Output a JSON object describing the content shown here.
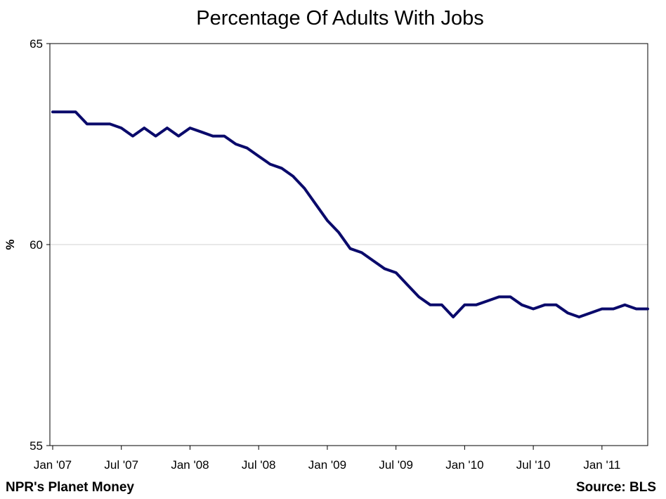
{
  "chart_data": {
    "type": "line",
    "title": "Percentage Of Adults With Jobs",
    "xlabel": "",
    "ylabel": "%",
    "ylim": [
      55,
      65
    ],
    "y_ticks": [
      55,
      60,
      65
    ],
    "y_tick_labels": [
      "55",
      "60",
      "65"
    ],
    "x_tick_labels": [
      "Jan '07",
      "Jul '07",
      "Jan '08",
      "Jul '08",
      "Jan '09",
      "Jul '09",
      "Jan '10",
      "Jul '10",
      "Jan '11"
    ],
    "x_start": "2007-01",
    "x_end": "2011-05",
    "grid": "horizontal",
    "legend": "none",
    "line_color": "#0a0a6b",
    "series": [
      {
        "x": [
          "2007-01",
          "2007-02",
          "2007-03",
          "2007-04",
          "2007-05",
          "2007-06",
          "2007-07",
          "2007-08",
          "2007-09",
          "2007-10",
          "2007-11",
          "2007-12",
          "2008-01",
          "2008-02",
          "2008-03",
          "2008-04",
          "2008-05",
          "2008-06",
          "2008-07",
          "2008-08",
          "2008-09",
          "2008-10",
          "2008-11",
          "2008-12",
          "2009-01",
          "2009-02",
          "2009-03",
          "2009-04",
          "2009-05",
          "2009-06",
          "2009-07",
          "2009-08",
          "2009-09",
          "2009-10",
          "2009-11",
          "2009-12",
          "2010-01",
          "2010-02",
          "2010-03",
          "2010-04",
          "2010-05",
          "2010-06",
          "2010-07",
          "2010-08",
          "2010-09",
          "2010-10",
          "2010-11",
          "2010-12",
          "2011-01",
          "2011-02",
          "2011-03",
          "2011-04",
          "2011-05"
        ],
        "values": [
          63.3,
          63.3,
          63.3,
          63.0,
          63.0,
          63.0,
          62.9,
          62.7,
          62.9,
          62.7,
          62.9,
          62.7,
          62.9,
          62.8,
          62.7,
          62.7,
          62.5,
          62.4,
          62.2,
          62.0,
          61.9,
          61.7,
          61.4,
          61.0,
          60.6,
          60.3,
          59.9,
          59.8,
          59.6,
          59.4,
          59.3,
          59.0,
          58.7,
          58.5,
          58.5,
          58.2,
          58.5,
          58.5,
          58.6,
          58.7,
          58.7,
          58.5,
          58.4,
          58.5,
          58.5,
          58.3,
          58.2,
          58.3,
          58.4,
          58.4,
          58.5,
          58.4,
          58.4
        ]
      }
    ]
  },
  "footer": {
    "left": "NPR's Planet Money",
    "right": "Source: BLS"
  }
}
